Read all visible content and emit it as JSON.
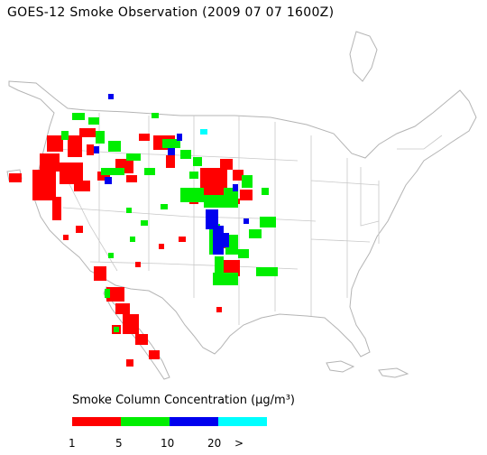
{
  "title": "GOES-12 Smoke Observation (2009 07 07  1600Z)",
  "legend": {
    "title": "Smoke Column Concentration (μg/m³)",
    "bins": [
      {
        "name": "1-5",
        "color": "#ff0000"
      },
      {
        "name": "5-10",
        "color": "#00ee00"
      },
      {
        "name": "10-20",
        "color": "#0000ee"
      },
      {
        "name": ">20",
        "color": "#00ffff"
      }
    ],
    "tick_labels": [
      "1",
      "5",
      "10",
      "20",
      ">"
    ]
  },
  "colors": {
    "boundary": "#b4b4b4",
    "low": "#ff0000",
    "mid": "#00ee00",
    "high": "#0000ee",
    "very_high": "#00ffff"
  }
}
